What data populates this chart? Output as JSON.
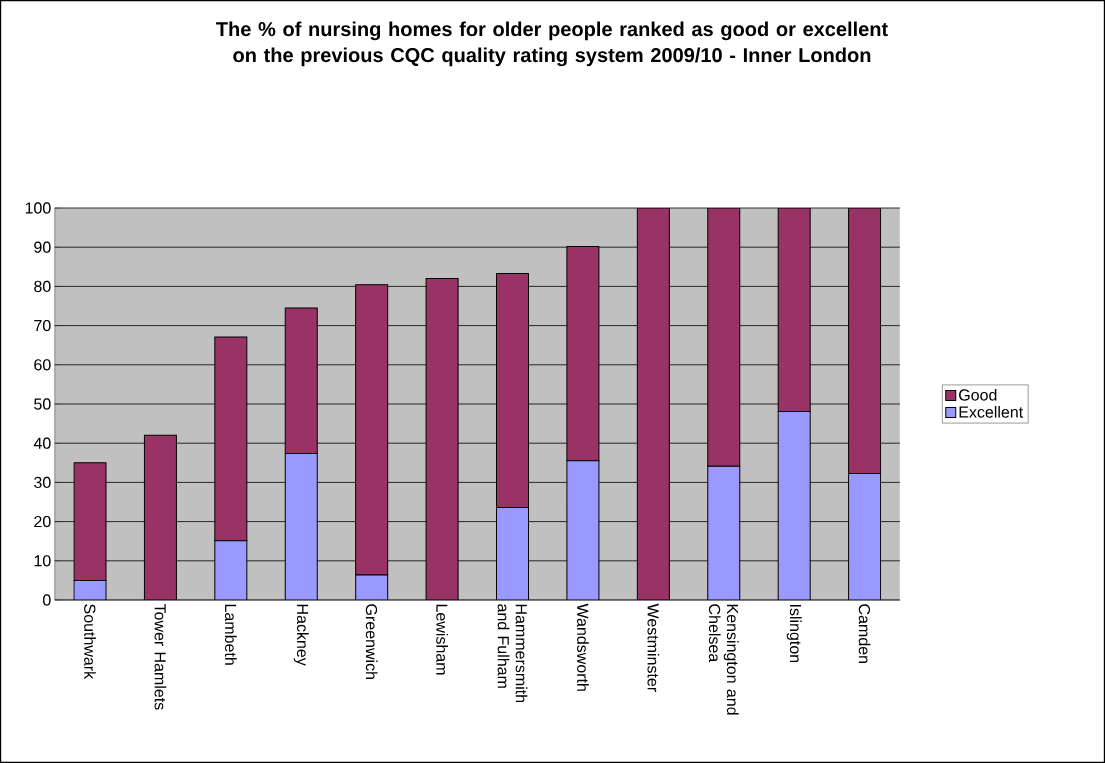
{
  "chart_data": {
    "type": "bar",
    "title": "The % of nursing homes for older people ranked as good or excellent on the previous CQC quality rating system 2009/10  - Inner London",
    "categories": [
      "Southwark",
      "Tower Hamlets",
      "Lambeth",
      "Hackney",
      "Greenwich",
      "Lewisham",
      "Hammersmith and Fulham",
      "Wandsworth",
      "Westminster",
      "Kensington and Chelsea",
      "Islington",
      "Camden"
    ],
    "series": [
      {
        "name": "Excellent",
        "color": "#9999ff",
        "values": [
          5,
          0,
          15.1,
          37.4,
          6.4,
          0,
          23.6,
          35.5,
          0,
          34.1,
          48.1,
          32.3
        ]
      },
      {
        "name": "Good",
        "color": "#993366",
        "values": [
          30,
          42,
          52,
          37.1,
          74,
          82,
          59.7,
          54.7,
          100,
          65.9,
          51.9,
          67.7
        ]
      }
    ],
    "stacked": true,
    "ylim": [
      0,
      100
    ],
    "yticks": [
      0,
      10,
      20,
      30,
      40,
      50,
      60,
      70,
      80,
      90,
      100
    ],
    "grid": "y",
    "legend": "right"
  }
}
